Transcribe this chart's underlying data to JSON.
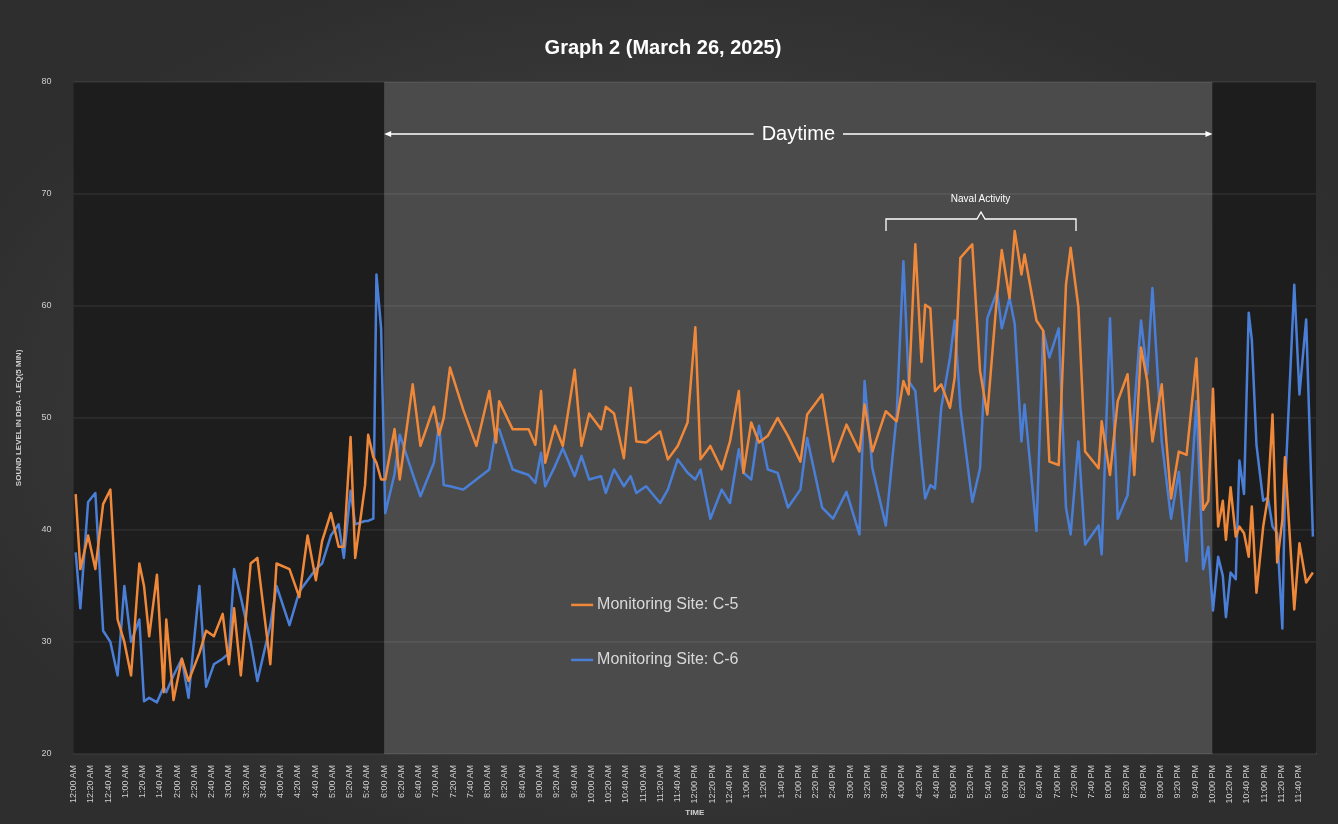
{
  "chart_data": {
    "type": "line",
    "title": "Graph 2 (March 26, 2025)",
    "xlabel": "TIME",
    "ylabel": "SOUND LEVEL IN DBA - LEQ(5 MIN)",
    "x": [
      0.04,
      0.13,
      0.28,
      0.42,
      0.57,
      0.71,
      0.85,
      0.98,
      1.11,
      1.27,
      1.36,
      1.46,
      1.61,
      1.74,
      1.79,
      1.93,
      2.09,
      2.22,
      2.43,
      2.56,
      2.71,
      2.88,
      3.0,
      3.1,
      3.23,
      3.42,
      3.55,
      3.8,
      3.92,
      4.17,
      4.36,
      4.52,
      4.68,
      4.8,
      4.97,
      5.12,
      5.22,
      5.35,
      5.44,
      5.63,
      5.69,
      5.79,
      5.85,
      5.94,
      6.02,
      6.2,
      6.3,
      6.55,
      6.7,
      6.96,
      7.06,
      7.15,
      7.27,
      7.53,
      7.78,
      8.03,
      8.16,
      8.22,
      8.48,
      8.79,
      8.92,
      9.03,
      9.11,
      9.3,
      9.45,
      9.68,
      9.81,
      9.96,
      10.19,
      10.28,
      10.44,
      10.63,
      10.76,
      10.87,
      11.06,
      11.33,
      11.48,
      11.67,
      11.86,
      12.01,
      12.11,
      12.3,
      12.52,
      12.68,
      12.85,
      12.94,
      13.09,
      13.24,
      13.41,
      13.6,
      13.8,
      14.04,
      14.17,
      14.46,
      14.67,
      14.93,
      15.18,
      15.28,
      15.43,
      15.69,
      15.9,
      16.03,
      16.13,
      16.26,
      16.38,
      16.45,
      16.55,
      16.64,
      16.76,
      16.93,
      17.02,
      17.13,
      17.36,
      17.51,
      17.65,
      17.84,
      17.93,
      18.08,
      18.18,
      18.31,
      18.37,
      18.6,
      18.73,
      18.85,
      19.03,
      19.17,
      19.26,
      19.41,
      19.54,
      19.8,
      19.86,
      20.02,
      20.17,
      20.36,
      20.49,
      20.62,
      20.74,
      20.84,
      21.02,
      21.2,
      21.35,
      21.5,
      21.69,
      21.82,
      21.92,
      22.01,
      22.11,
      22.2,
      22.26,
      22.35,
      22.45,
      22.52,
      22.61,
      22.7,
      22.76,
      22.85,
      22.98,
      23.07,
      23.16,
      23.25,
      23.35,
      23.4,
      23.58,
      23.68,
      23.81,
      23.94
    ],
    "series": [
      {
        "name": "Monitoring Site: C-5",
        "color": "#f0883a",
        "values": [
          43.2,
          36.5,
          39.5,
          36.5,
          42.3,
          43.6,
          32,
          30,
          27,
          37,
          35,
          30.5,
          36,
          25.5,
          32,
          24.8,
          28.5,
          26.5,
          29,
          31,
          30.5,
          32.5,
          28,
          33,
          27,
          37,
          37.5,
          28,
          37,
          36.5,
          34,
          39.5,
          35.5,
          39,
          41.5,
          38.5,
          38.5,
          48.3,
          37.5,
          44,
          48.5,
          46.5,
          46,
          44.5,
          44.5,
          49,
          44.5,
          53,
          47.5,
          51,
          48.5,
          50,
          54.5,
          50.7,
          47.5,
          52.4,
          47.8,
          51.5,
          49,
          49,
          47.6,
          52.4,
          46,
          49.3,
          47.5,
          54.3,
          47.5,
          50.4,
          49,
          51,
          50.4,
          46.4,
          52.7,
          47.9,
          47.8,
          48.8,
          46.3,
          47.5,
          49.6,
          58.1,
          46.3,
          47.5,
          45.4,
          47.9,
          52.4,
          45.1,
          49.6,
          47.8,
          48.4,
          50,
          48.4,
          46.1,
          50.3,
          52.1,
          46.1,
          49.4,
          47,
          51.2,
          47,
          50.6,
          49.7,
          53.3,
          52.1,
          65.5,
          55,
          60.1,
          59.8,
          52.4,
          53,
          50.9,
          53.6,
          64.3,
          65.5,
          54.2,
          50.3,
          61,
          65,
          60.7,
          66.7,
          62.8,
          64.6,
          58.7,
          57.8,
          46.1,
          45.8,
          61.9,
          65.2,
          59.9,
          47,
          45.5,
          49.7,
          44.9,
          51.5,
          53.9,
          44.9,
          56.3,
          53.3,
          47.9,
          53,
          42.8,
          47,
          46.7,
          55.3,
          41.8,
          42.6,
          52.6,
          40.3,
          42.6,
          39.1,
          43.8,
          39.4,
          40.3,
          39.7,
          37.6,
          42.1,
          34.4,
          40.3,
          42.9,
          50.3,
          37.1,
          40.9,
          46.5,
          32.9,
          38.8,
          35.3,
          36.2
        ]
      },
      {
        "name": "Monitoring Site: C-6",
        "color": "#4a7fd8",
        "values": [
          38,
          33,
          42.5,
          43.3,
          31,
          30,
          27,
          35,
          30,
          32,
          24.7,
          25,
          24.6,
          26,
          25.5,
          27,
          28.5,
          25,
          35,
          26,
          28,
          28.5,
          29,
          36.5,
          34,
          30,
          26.5,
          31.5,
          35,
          31.5,
          34.5,
          35.5,
          36.5,
          37,
          39.5,
          40.5,
          37.5,
          43.5,
          40.5,
          40.8,
          40.8,
          41,
          62.8,
          58,
          41.5,
          45,
          48.5,
          45,
          43,
          46,
          49.5,
          44,
          43.9,
          43.6,
          44.5,
          45.4,
          49,
          49,
          45.4,
          44.9,
          44.2,
          46.9,
          43.9,
          45.7,
          47.3,
          44.8,
          46.6,
          44.5,
          44.8,
          43.3,
          45.4,
          43.9,
          44.8,
          43.3,
          43.9,
          42.4,
          43.6,
          46.3,
          45.1,
          44.5,
          45.4,
          41,
          43.6,
          42.4,
          47.2,
          45.1,
          44.5,
          49.3,
          45.4,
          45.1,
          42,
          43.6,
          48.2,
          42,
          41,
          43.4,
          39.6,
          53.3,
          45.5,
          40.4,
          50.3,
          64,
          53.3,
          52.4,
          46.1,
          42.8,
          44,
          43.7,
          50.9,
          55.4,
          58.7,
          50.9,
          42.5,
          45.5,
          58.9,
          61.3,
          58,
          60.7,
          58.4,
          47.9,
          51.2,
          39.9,
          57.8,
          55.4,
          58,
          42,
          39.6,
          47.9,
          38.7,
          40.4,
          37.8,
          58.9,
          41,
          43.1,
          50.9,
          58.7,
          53.9,
          61.6,
          47.9,
          41,
          45.2,
          37.2,
          51.5,
          36.5,
          38.5,
          32.8,
          37.6,
          35.9,
          32.2,
          36.2,
          35.6,
          46.2,
          43.2,
          59.4,
          57,
          47.6,
          42.6,
          42.9,
          40.3,
          39.7,
          31.2,
          43.5,
          61.9,
          52.1,
          58.8,
          39.4
        ]
      }
    ],
    "xlim": [
      0,
      24
    ],
    "ylim": [
      20,
      80
    ],
    "yticks": [
      20,
      30,
      40,
      50,
      60,
      70,
      80
    ],
    "xticks": [
      {
        "value": 0,
        "label": "12:00 AM"
      },
      {
        "value": 0.3333,
        "label": "12:20 AM"
      },
      {
        "value": 0.6667,
        "label": "12:40 AM"
      },
      {
        "value": 1,
        "label": "1:00 AM"
      },
      {
        "value": 1.3333,
        "label": "1:20 AM"
      },
      {
        "value": 1.6667,
        "label": "1:40 AM"
      },
      {
        "value": 2,
        "label": "2:00 AM"
      },
      {
        "value": 2.3333,
        "label": "2:20 AM"
      },
      {
        "value": 2.6667,
        "label": "2:40 AM"
      },
      {
        "value": 3,
        "label": "3:00 AM"
      },
      {
        "value": 3.3333,
        "label": "3:20 AM"
      },
      {
        "value": 3.6667,
        "label": "3:40 AM"
      },
      {
        "value": 4,
        "label": "4:00 AM"
      },
      {
        "value": 4.3333,
        "label": "4:20 AM"
      },
      {
        "value": 4.6667,
        "label": "4:40 AM"
      },
      {
        "value": 5,
        "label": "5:00 AM"
      },
      {
        "value": 5.3333,
        "label": "5:20 AM"
      },
      {
        "value": 5.6667,
        "label": "5:40 AM"
      },
      {
        "value": 6,
        "label": "6:00 AM"
      },
      {
        "value": 6.3333,
        "label": "6:20 AM"
      },
      {
        "value": 6.6667,
        "label": "6:40 AM"
      },
      {
        "value": 7,
        "label": "7:00 AM"
      },
      {
        "value": 7.3333,
        "label": "7:20 AM"
      },
      {
        "value": 7.6667,
        "label": "7:40 AM"
      },
      {
        "value": 8,
        "label": "8:00 AM"
      },
      {
        "value": 8.3333,
        "label": "8:20 AM"
      },
      {
        "value": 8.6667,
        "label": "8:40 AM"
      },
      {
        "value": 9,
        "label": "9:00 AM"
      },
      {
        "value": 9.3333,
        "label": "9:20 AM"
      },
      {
        "value": 9.6667,
        "label": "9:40 AM"
      },
      {
        "value": 10,
        "label": "10:00 AM"
      },
      {
        "value": 10.3333,
        "label": "10:20 AM"
      },
      {
        "value": 10.6667,
        "label": "10:40 AM"
      },
      {
        "value": 11,
        "label": "11:00 AM"
      },
      {
        "value": 11.3333,
        "label": "11:20 AM"
      },
      {
        "value": 11.6667,
        "label": "11:40 AM"
      },
      {
        "value": 12,
        "label": "12:00 PM"
      },
      {
        "value": 12.3333,
        "label": "12:20 PM"
      },
      {
        "value": 12.6667,
        "label": "12:40 PM"
      },
      {
        "value": 13,
        "label": "1:00 PM"
      },
      {
        "value": 13.3333,
        "label": "1:20 PM"
      },
      {
        "value": 13.6667,
        "label": "1:40 PM"
      },
      {
        "value": 14,
        "label": "2:00 PM"
      },
      {
        "value": 14.3333,
        "label": "2:20 PM"
      },
      {
        "value": 14.6667,
        "label": "2:40 PM"
      },
      {
        "value": 15,
        "label": "3:00 PM"
      },
      {
        "value": 15.3333,
        "label": "3:20 PM"
      },
      {
        "value": 15.6667,
        "label": "3:40 PM"
      },
      {
        "value": 16,
        "label": "4:00 PM"
      },
      {
        "value": 16.3333,
        "label": "4:20 PM"
      },
      {
        "value": 16.6667,
        "label": "4:40 PM"
      },
      {
        "value": 17,
        "label": "5:00 PM"
      },
      {
        "value": 17.3333,
        "label": "5:20 PM"
      },
      {
        "value": 17.6667,
        "label": "5:40 PM"
      },
      {
        "value": 18,
        "label": "6:00 PM"
      },
      {
        "value": 18.3333,
        "label": "6:20 PM"
      },
      {
        "value": 18.6667,
        "label": "6:40 PM"
      },
      {
        "value": 19,
        "label": "7:00 PM"
      },
      {
        "value": 19.3333,
        "label": "7:20 PM"
      },
      {
        "value": 19.6667,
        "label": "7:40 PM"
      },
      {
        "value": 20,
        "label": "8:00 PM"
      },
      {
        "value": 20.3333,
        "label": "8:20 PM"
      },
      {
        "value": 20.6667,
        "label": "8:40 PM"
      },
      {
        "value": 21,
        "label": "9:00 PM"
      },
      {
        "value": 21.3333,
        "label": "9:20 PM"
      },
      {
        "value": 21.6667,
        "label": "9:40 PM"
      },
      {
        "value": 22,
        "label": "10:00 PM"
      },
      {
        "value": 22.3333,
        "label": "10:20 PM"
      },
      {
        "value": 22.6667,
        "label": "10:40 PM"
      },
      {
        "value": 23,
        "label": "11:00 PM"
      },
      {
        "value": 23.3333,
        "label": "11:20 PM"
      },
      {
        "value": 23.6667,
        "label": "11:40 PM"
      }
    ],
    "bands": [
      {
        "axis": "x",
        "from": 0,
        "to": 6,
        "color": "#1d1d1d"
      },
      {
        "axis": "x",
        "from": 6,
        "to": 22,
        "color": "#4b4b4b",
        "label": "Daytime"
      },
      {
        "axis": "x",
        "from": 22,
        "to": 24,
        "color": "#1d1d1d"
      }
    ],
    "annotations": [
      "Naval Activity"
    ],
    "grid": "y",
    "legend": "bottom",
    "marker": "none",
    "line_style": "solid"
  }
}
